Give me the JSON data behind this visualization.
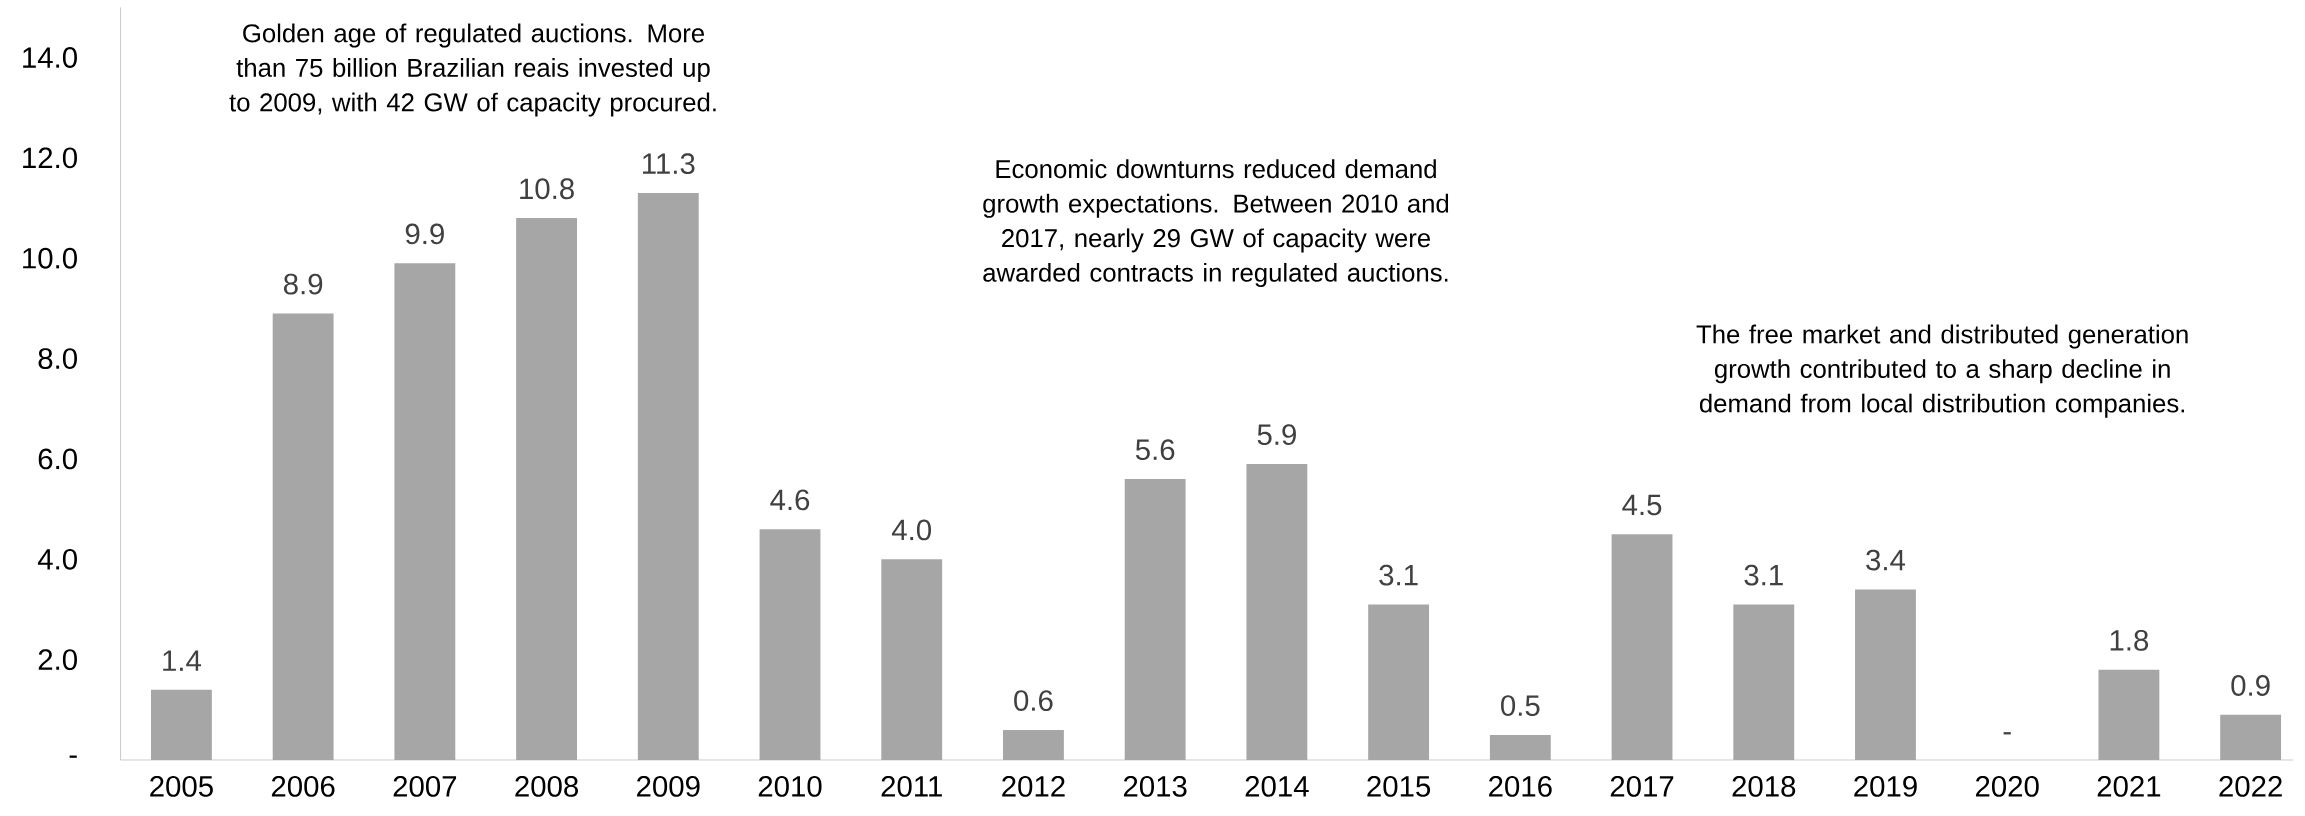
{
  "chart_data": {
    "type": "bar",
    "categories": [
      "2005",
      "2006",
      "2007",
      "2008",
      "2009",
      "2010",
      "2011",
      "2012",
      "2013",
      "2014",
      "2015",
      "2016",
      "2017",
      "2018",
      "2019",
      "2020",
      "2021",
      "2022"
    ],
    "values": [
      1.4,
      8.9,
      9.9,
      10.8,
      11.3,
      4.6,
      4.0,
      0.6,
      5.6,
      5.9,
      3.1,
      0.5,
      4.5,
      3.1,
      3.4,
      0,
      1.8,
      0.9
    ],
    "value_labels": [
      "1.4",
      "8.9",
      "9.9",
      "10.8",
      "11.3",
      "4.6",
      "4.0",
      "0.6",
      "5.6",
      "5.9",
      "3.1",
      "0.5",
      "4.5",
      "3.1",
      "3.4",
      "-",
      "1.8",
      "0.9"
    ],
    "color": "#a6a6a6",
    "ylim": [
      0,
      15
    ],
    "yticks": [
      {
        "value": 0,
        "label": "-"
      },
      {
        "value": 2,
        "label": "2.0"
      },
      {
        "value": 4,
        "label": "4.0"
      },
      {
        "value": 6,
        "label": "6.0"
      },
      {
        "value": 8,
        "label": "8.0"
      },
      {
        "value": 10,
        "label": "10.0"
      },
      {
        "value": 12,
        "label": "12.0"
      },
      {
        "value": 14,
        "label": "14.0"
      }
    ],
    "grid": false,
    "annotations": [
      "Golden age of regulated auctions. More than 75 billion Brazilian reais invested up to 2009, with 42 GW of capacity procured.",
      "Economic downturns reduced demand growth expectations. Between 2010 and 2017, nearly 29 GW of capacity were awarded contracts in regulated auctions.",
      "The free market and distributed generation growth contributed to a sharp decline in demand from local distribution companies."
    ]
  }
}
